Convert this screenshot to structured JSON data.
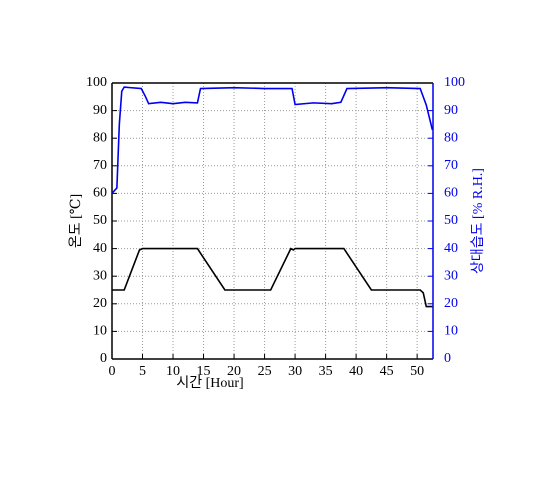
{
  "chart_data": {
    "type": "line",
    "xlabel": "시간 [Hour]",
    "ylabel": "온도 [℃]",
    "y2label": "상대습도 [% R.H.]",
    "xlim": [
      0,
      52.6
    ],
    "xticks": [
      0,
      5,
      10,
      15,
      20,
      25,
      30,
      35,
      40,
      45,
      50
    ],
    "ylim": [
      0,
      100
    ],
    "yticks": [
      0,
      10,
      20,
      30,
      40,
      50,
      60,
      70,
      80,
      90,
      100
    ],
    "y2lim": [
      0,
      100
    ],
    "y2ticks": [
      0,
      10,
      20,
      30,
      40,
      50,
      60,
      70,
      80,
      90,
      100
    ],
    "grid": true,
    "series": [
      {
        "name": "온도",
        "color": "#000000",
        "x": [
          0,
          2,
          4.5,
          5,
          14,
          18.5,
          26,
          29.3,
          29.7,
          30,
          38,
          42.5,
          50.5,
          51,
          51.5,
          52.5
        ],
        "values": [
          25,
          25,
          39.5,
          40,
          40,
          25,
          25,
          40,
          39.5,
          40,
          40,
          25,
          25,
          24,
          19,
          19
        ]
      },
      {
        "name": "상대습도",
        "color": "#0000ee",
        "axis": "y2",
        "x": [
          0,
          0.8,
          1.2,
          1.6,
          2,
          4.8,
          5.5,
          6,
          8,
          10,
          12,
          14,
          14.5,
          20,
          25,
          29.5,
          30,
          33,
          36,
          37.5,
          38.5,
          45,
          50.5,
          51.5,
          52.5
        ],
        "values": [
          60,
          62,
          85,
          97,
          98.5,
          98,
          95,
          92.5,
          93,
          92.5,
          93,
          92.8,
          98,
          98.3,
          98,
          98,
          92.2,
          92.8,
          92.5,
          93,
          98,
          98.3,
          98,
          92,
          83
        ]
      }
    ]
  }
}
